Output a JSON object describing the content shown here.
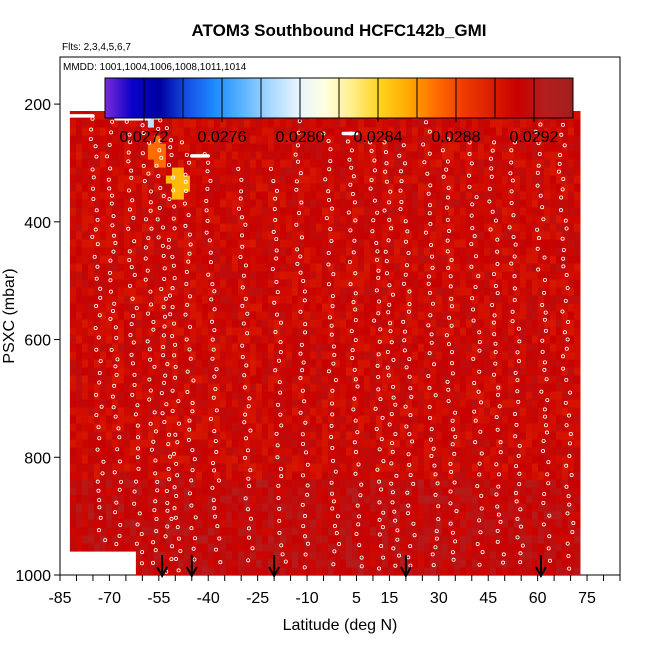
{
  "chart_data": {
    "type": "heatmap",
    "title": "ATOM3 Southbound HCFC142b_GMI",
    "flights_note": "Flts: 2,3,4,5,6,7",
    "mmdd_note": "MMDD: 1001,1004,1006,1008,1011,1014",
    "xlabel": "Latitude (deg N)",
    "ylabel": "PSXC (mbar)",
    "xlim": [
      -85,
      85
    ],
    "ylim": [
      1000,
      120
    ],
    "y_reversed": true,
    "x_ticks": [
      -85,
      -70,
      -55,
      -40,
      -25,
      -10,
      5,
      15,
      30,
      45,
      60,
      75
    ],
    "x_tick_labels": [
      "-85",
      "-70",
      "-55",
      "-40",
      "-25",
      "-10",
      "5",
      "15",
      "30",
      "45",
      "60",
      "75"
    ],
    "y_ticks": [
      200,
      400,
      600,
      800,
      1000
    ],
    "y_tick_labels": [
      "200",
      "400",
      "600",
      "800",
      "1000"
    ],
    "colorbar": {
      "min": 0.027,
      "max": 0.0294,
      "tick_values": [
        0.0272,
        0.0276,
        0.028,
        0.0284,
        0.0288,
        0.0292
      ],
      "tick_labels": [
        "0.0272",
        "0.0276",
        "0.0280",
        "0.0284",
        "0.0288",
        "0.0292"
      ],
      "colors": [
        "#7a2bd9",
        "#0a00c8",
        "#0000a0",
        "#1450e6",
        "#1e8cff",
        "#5ab4ff",
        "#a8d8ff",
        "#e6f4ff",
        "#ffffe0",
        "#ffee88",
        "#ffd21e",
        "#ffaa00",
        "#ff6e00",
        "#f03c00",
        "#dc1e00",
        "#c80000",
        "#b41e1e",
        "#a01e1e"
      ]
    },
    "field": {
      "lat_range": [
        -82,
        72
      ],
      "pressure_range": [
        185,
        1000
      ],
      "typical_value": 0.0291,
      "lower_left_gap": {
        "lat": [
          -82,
          -62
        ],
        "pressure": [
          960,
          1000
        ]
      },
      "top_strip": {
        "pressure": [
          185,
          215
        ],
        "lat": [
          -60,
          70
        ],
        "value_from": 0.0277,
        "value_to": 0.0292
      },
      "anomalies": [
        {
          "lat": -56,
          "pressure": 290,
          "value": 0.0287
        },
        {
          "lat": -50,
          "pressure": 340,
          "value": 0.0285
        },
        {
          "lat": -58,
          "pressure": 215,
          "value": 0.0279
        }
      ]
    },
    "profiles": [
      {
        "lat": -75,
        "p_top": 225,
        "p_bottom": 960
      },
      {
        "lat": -70,
        "p_top": 230,
        "p_bottom": 960
      },
      {
        "lat": -64,
        "p_top": 230,
        "p_bottom": 990
      },
      {
        "lat": -59,
        "p_top": 220,
        "p_bottom": 990
      },
      {
        "lat": -55,
        "p_top": 215,
        "p_bottom": 995
      },
      {
        "lat": -52,
        "p_top": 220,
        "p_bottom": 995
      },
      {
        "lat": -47,
        "p_top": 265,
        "p_bottom": 990
      },
      {
        "lat": -40,
        "p_top": 285,
        "p_bottom": 990
      },
      {
        "lat": -30,
        "p_top": 310,
        "p_bottom": 990
      },
      {
        "lat": -20,
        "p_top": 310,
        "p_bottom": 990
      },
      {
        "lat": -13,
        "p_top": 195,
        "p_bottom": 990
      },
      {
        "lat": -4,
        "p_top": 250,
        "p_bottom": 990
      },
      {
        "lat": 3,
        "p_top": 250,
        "p_bottom": 990
      },
      {
        "lat": 10,
        "p_top": 265,
        "p_bottom": 990
      },
      {
        "lat": 14,
        "p_top": 265,
        "p_bottom": 990
      },
      {
        "lat": 19,
        "p_top": 270,
        "p_bottom": 990
      },
      {
        "lat": 26,
        "p_top": 200,
        "p_bottom": 990
      },
      {
        "lat": 32,
        "p_top": 260,
        "p_bottom": 990
      },
      {
        "lat": 40,
        "p_top": 265,
        "p_bottom": 990
      },
      {
        "lat": 46,
        "p_top": 265,
        "p_bottom": 990
      },
      {
        "lat": 52,
        "p_top": 265,
        "p_bottom": 990
      },
      {
        "lat": 60,
        "p_top": 200,
        "p_bottom": 990
      },
      {
        "lat": 67,
        "p_top": 200,
        "p_bottom": 990
      }
    ],
    "level_segments": [
      {
        "lat_from": -82,
        "lat_to": -75,
        "pressure": 220
      },
      {
        "lat_from": -68,
        "lat_to": -58,
        "pressure": 225
      },
      {
        "lat_from": -56,
        "lat_to": -48,
        "pressure": 200
      },
      {
        "lat_from": -45,
        "lat_to": -40,
        "pressure": 288
      },
      {
        "lat_from": 1,
        "lat_to": 5,
        "pressure": 250
      },
      {
        "lat_from": 26,
        "lat_to": 27,
        "pressure": 197
      },
      {
        "lat_from": 59,
        "lat_to": 66,
        "pressure": 197
      }
    ],
    "arrow_markers_lat": [
      -54,
      -45,
      -20,
      20,
      61
    ]
  }
}
